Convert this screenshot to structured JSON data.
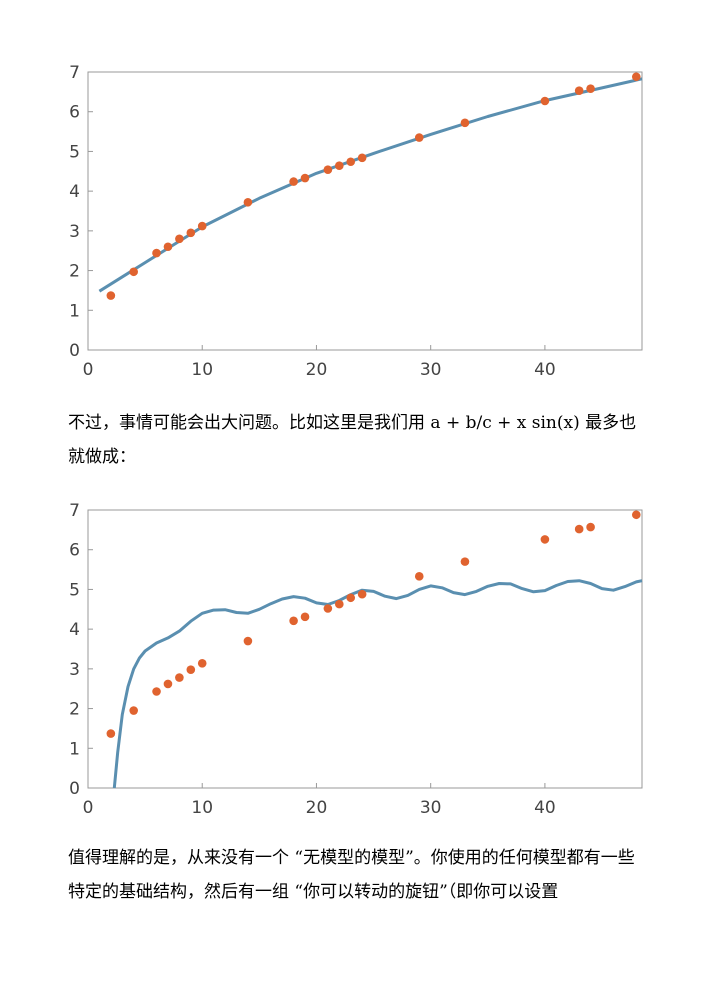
{
  "text": {
    "para1": "不过，事情可能会出大问题。比如这里是我们用 a + b/c + x sin(x) 最多也就做成：",
    "para2": "值得理解的是，从来没有一个 “无模型的模型”。你使用的任何模型都有一些特定的基础结构，然后有一组 “你可以转动的旋钮”（即你可以设置"
  },
  "colors": {
    "curve": "#5a8fb0",
    "points": "#e0632f",
    "axis": "#999999"
  },
  "chart_data": [
    {
      "type": "scatter",
      "title": "",
      "xlabel": "",
      "ylabel": "",
      "xlim": [
        0,
        48.5
      ],
      "ylim": [
        0,
        7
      ],
      "xticks": [
        0,
        10,
        20,
        30,
        40
      ],
      "yticks": [
        0,
        1,
        2,
        3,
        4,
        5,
        6,
        7
      ],
      "series": [
        {
          "kind": "points",
          "x": [
            2,
            4,
            6,
            7,
            8,
            9,
            10,
            14,
            18,
            19,
            21,
            22,
            23,
            24,
            29,
            33,
            40,
            43,
            44,
            48
          ],
          "y": [
            1.37,
            1.97,
            2.44,
            2.6,
            2.8,
            2.95,
            3.12,
            3.72,
            4.24,
            4.33,
            4.54,
            4.64,
            4.74,
            4.84,
            5.35,
            5.72,
            6.27,
            6.53,
            6.58,
            6.88
          ]
        },
        {
          "kind": "curve",
          "x": [
            1,
            5,
            10,
            15,
            20,
            25,
            30,
            35,
            40,
            45,
            48.5
          ],
          "y": [
            1.48,
            2.2,
            3.1,
            3.82,
            4.45,
            4.95,
            5.43,
            5.88,
            6.28,
            6.6,
            6.83
          ]
        }
      ]
    },
    {
      "type": "scatter",
      "title": "",
      "xlabel": "",
      "ylabel": "",
      "xlim": [
        0,
        48.5
      ],
      "ylim": [
        0,
        7
      ],
      "xticks": [
        0,
        10,
        20,
        30,
        40
      ],
      "yticks": [
        0,
        1,
        2,
        3,
        4,
        5,
        6,
        7
      ],
      "series": [
        {
          "kind": "points",
          "x": [
            2,
            4,
            6,
            7,
            8,
            9,
            10,
            14,
            18,
            19,
            21,
            22,
            23,
            24,
            29,
            33,
            40,
            43,
            44,
            48
          ],
          "y": [
            1.37,
            1.95,
            2.43,
            2.62,
            2.78,
            2.98,
            3.14,
            3.7,
            4.21,
            4.31,
            4.52,
            4.63,
            4.79,
            4.88,
            5.33,
            5.7,
            6.26,
            6.52,
            6.57,
            6.88
          ]
        },
        {
          "kind": "curve",
          "x": [
            2.3,
            2.6,
            3,
            3.5,
            4,
            4.5,
            5,
            6,
            7,
            8,
            9,
            10,
            11,
            12,
            13,
            14,
            15,
            16,
            17,
            18,
            19,
            20,
            21,
            22,
            23,
            24,
            25,
            26,
            27,
            28,
            29,
            30,
            31,
            32,
            33,
            34,
            35,
            36,
            37,
            38,
            39,
            40,
            41,
            42,
            43,
            44,
            45,
            46,
            47,
            48,
            48.5
          ],
          "y": [
            0,
            0.9,
            1.85,
            2.55,
            3.0,
            3.27,
            3.45,
            3.65,
            3.78,
            3.95,
            4.2,
            4.4,
            4.48,
            4.49,
            4.42,
            4.4,
            4.5,
            4.64,
            4.76,
            4.82,
            4.78,
            4.66,
            4.62,
            4.72,
            4.87,
            4.98,
            4.95,
            4.83,
            4.77,
            4.85,
            5.0,
            5.09,
            5.04,
            4.92,
            4.87,
            4.95,
            5.08,
            5.15,
            5.14,
            5.02,
            4.94,
            4.97,
            5.1,
            5.2,
            5.22,
            5.15,
            5.02,
            4.98,
            5.07,
            5.19,
            5.22
          ]
        }
      ]
    }
  ]
}
